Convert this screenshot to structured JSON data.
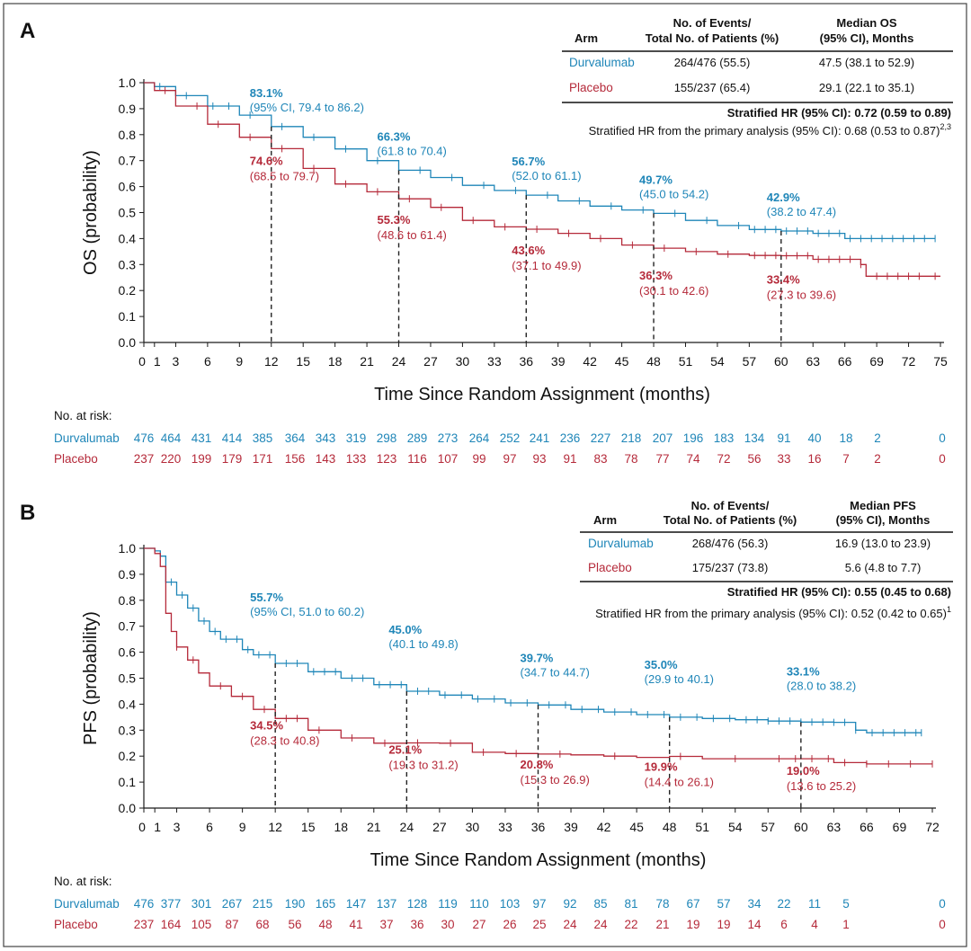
{
  "colors": {
    "durvalumab": "#1f86b8",
    "placebo": "#b52a3a",
    "axis": "#1a1a1a",
    "frame": "#444444"
  },
  "chart_data": [
    {
      "panel": "A",
      "type": "line",
      "ylabel": "OS (probability)",
      "xlabel": "Time Since Random Assignment (months)",
      "xlim": [
        0,
        75
      ],
      "ylim": [
        0,
        1
      ],
      "xticks": [
        "0",
        "1",
        "3",
        "6",
        "9",
        "12",
        "15",
        "18",
        "21",
        "24",
        "27",
        "30",
        "33",
        "36",
        "39",
        "42",
        "45",
        "48",
        "51",
        "54",
        "57",
        "60",
        "63",
        "66",
        "69",
        "72",
        "75"
      ],
      "xtick_values": [
        0,
        1,
        3,
        6,
        9,
        12,
        15,
        18,
        21,
        24,
        27,
        30,
        33,
        36,
        39,
        42,
        45,
        48,
        51,
        54,
        57,
        60,
        63,
        66,
        69,
        72,
        75
      ],
      "yticks": [
        "0.0",
        "0.1",
        "0.2",
        "0.3",
        "0.4",
        "0.5",
        "0.6",
        "0.7",
        "0.8",
        "0.9",
        "1.0"
      ],
      "ytick_values": [
        0,
        0.1,
        0.2,
        0.3,
        0.4,
        0.5,
        0.6,
        0.7,
        0.8,
        0.9,
        1.0
      ],
      "series": [
        {
          "name": "Durvalumab",
          "color_key": "durvalumab",
          "x": [
            0,
            1,
            3,
            6,
            9,
            12,
            15,
            18,
            21,
            24,
            27,
            30,
            33,
            36,
            39,
            42,
            45,
            48,
            51,
            54,
            57,
            60,
            63,
            66,
            69,
            72,
            74.5
          ],
          "y": [
            1.0,
            0.985,
            0.95,
            0.91,
            0.875,
            0.831,
            0.79,
            0.745,
            0.7,
            0.663,
            0.635,
            0.605,
            0.585,
            0.567,
            0.545,
            0.525,
            0.51,
            0.497,
            0.47,
            0.45,
            0.435,
            0.429,
            0.42,
            0.4,
            0.4,
            0.4,
            0.4
          ],
          "censor_x": [
            1.5,
            4,
            6.5,
            8,
            10,
            13,
            16,
            19,
            22,
            26,
            29,
            32,
            35,
            38,
            41,
            44,
            47,
            50,
            53,
            56,
            57.5,
            58.5,
            59.5,
            60.5,
            61.5,
            62.5,
            63.5,
            64.5,
            65.5,
            66.5,
            67.5,
            68.5,
            69.5,
            70.5,
            71.5,
            72.5,
            73.5,
            74.5
          ]
        },
        {
          "name": "Placebo",
          "color_key": "placebo",
          "x": [
            0,
            1,
            3,
            6,
            9,
            12,
            15,
            18,
            21,
            24,
            27,
            30,
            33,
            36,
            39,
            42,
            45,
            48,
            51,
            54,
            57,
            60,
            63,
            66,
            67.5,
            68,
            69,
            72,
            75
          ],
          "y": [
            1.0,
            0.97,
            0.91,
            0.84,
            0.79,
            0.746,
            0.67,
            0.61,
            0.58,
            0.553,
            0.52,
            0.47,
            0.445,
            0.436,
            0.42,
            0.4,
            0.375,
            0.363,
            0.35,
            0.34,
            0.335,
            0.334,
            0.32,
            0.32,
            0.3,
            0.255,
            0.255,
            0.255,
            0.255
          ],
          "censor_x": [
            2,
            5,
            7,
            10,
            13,
            16,
            19,
            22,
            25,
            28,
            31,
            34,
            37,
            40,
            43,
            46,
            49,
            52,
            55,
            57.5,
            58.5,
            59.5,
            60.5,
            61.5,
            62.5,
            63.5,
            64.5,
            65.5,
            66.5,
            67.5,
            69,
            70,
            71,
            72,
            73,
            74.5
          ]
        }
      ],
      "landmarks": [
        {
          "x": 12,
          "dur": 0.831,
          "pla": 0.746,
          "dur_pct": "83.1%",
          "dur_ci": "(95% CI, 79.4 to 86.2)",
          "pla_pct": "74.6%",
          "pla_ci": "(68.5 to 79.7)"
        },
        {
          "x": 24,
          "dur": 0.663,
          "pla": 0.553,
          "dur_pct": "66.3%",
          "dur_ci": "(61.8 to 70.4)",
          "pla_pct": "55.3%",
          "pla_ci": "(48.6 to 61.4)"
        },
        {
          "x": 36,
          "dur": 0.567,
          "pla": 0.436,
          "dur_pct": "56.7%",
          "dur_ci": "(52.0 to 61.1)",
          "pla_pct": "43.6%",
          "pla_ci": "(37.1 to 49.9)"
        },
        {
          "x": 48,
          "dur": 0.497,
          "pla": 0.363,
          "dur_pct": "49.7%",
          "dur_ci": "(45.0 to 54.2)",
          "pla_pct": "36.3%",
          "pla_ci": "(30.1 to 42.6)"
        },
        {
          "x": 60,
          "dur": 0.429,
          "pla": 0.334,
          "dur_pct": "42.9%",
          "dur_ci": "(38.2 to 47.4)",
          "pla_pct": "33.4%",
          "pla_ci": "(27.3 to 39.6)"
        }
      ],
      "table": {
        "header_arm": "Arm",
        "header_events_1": "No. of Events/",
        "header_events_2": "Total No. of Patients (%)",
        "header_median_1": "Median OS",
        "header_median_2": "(95% CI), Months",
        "rows": [
          {
            "arm": "Durvalumab",
            "events": "264/476 (55.5)",
            "median": "47.5 (38.1 to 52.9)"
          },
          {
            "arm": "Placebo",
            "events": "155/237 (65.4)",
            "median": "29.1 (22.1 to 35.1)"
          }
        ],
        "hr_label": "Stratified HR (95% CI):",
        "hr_value": "0.72 (0.59 to 0.89)",
        "primary_text": "Stratified HR from the primary analysis (95% CI): 0.68 (0.53 to 0.87)",
        "primary_sup": "2,3"
      },
      "risk": {
        "title": "No. at risk:",
        "durvalumab": [
          "476",
          "464",
          "431",
          "414",
          "385",
          "364",
          "343",
          "319",
          "298",
          "289",
          "273",
          "264",
          "252",
          "241",
          "236",
          "227",
          "218",
          "207",
          "196",
          "183",
          "134",
          "91",
          "40",
          "18",
          "2",
          "0"
        ],
        "placebo": [
          "237",
          "220",
          "199",
          "179",
          "171",
          "156",
          "143",
          "133",
          "123",
          "116",
          "107",
          "99",
          "97",
          "93",
          "91",
          "83",
          "78",
          "77",
          "74",
          "72",
          "56",
          "33",
          "16",
          "7",
          "2",
          "0"
        ]
      }
    },
    {
      "panel": "B",
      "type": "line",
      "ylabel": "PFS (probability)",
      "xlabel": "Time Since Random Assignment (months)",
      "xlim": [
        0,
        72
      ],
      "ylim": [
        0,
        1
      ],
      "xticks": [
        "0",
        "1",
        "3",
        "6",
        "9",
        "12",
        "15",
        "18",
        "21",
        "24",
        "27",
        "30",
        "33",
        "36",
        "39",
        "42",
        "45",
        "48",
        "51",
        "54",
        "57",
        "60",
        "63",
        "66",
        "69",
        "72"
      ],
      "xtick_values": [
        0,
        1,
        3,
        6,
        9,
        12,
        15,
        18,
        21,
        24,
        27,
        30,
        33,
        36,
        39,
        42,
        45,
        48,
        51,
        54,
        57,
        60,
        63,
        66,
        69,
        72
      ],
      "yticks": [
        "0.0",
        "0.1",
        "0.2",
        "0.3",
        "0.4",
        "0.5",
        "0.6",
        "0.7",
        "0.8",
        "0.9",
        "1.0"
      ],
      "ytick_values": [
        0,
        0.1,
        0.2,
        0.3,
        0.4,
        0.5,
        0.6,
        0.7,
        0.8,
        0.9,
        1.0
      ],
      "series": [
        {
          "name": "Durvalumab",
          "color_key": "durvalumab",
          "x": [
            0,
            1,
            1.5,
            2,
            3,
            4,
            5,
            6,
            7,
            9,
            10,
            12,
            15,
            18,
            21,
            24,
            27,
            30,
            33,
            36,
            39,
            42,
            45,
            48,
            51,
            54,
            57,
            60,
            63,
            65,
            66,
            69,
            71
          ],
          "y": [
            1.0,
            0.99,
            0.97,
            0.87,
            0.82,
            0.77,
            0.72,
            0.68,
            0.65,
            0.61,
            0.59,
            0.557,
            0.525,
            0.5,
            0.475,
            0.45,
            0.435,
            0.42,
            0.405,
            0.397,
            0.38,
            0.37,
            0.36,
            0.35,
            0.345,
            0.34,
            0.335,
            0.331,
            0.33,
            0.3,
            0.29,
            0.29,
            0.29
          ],
          "censor_x": [
            2.5,
            3.5,
            4.5,
            5.5,
            6.5,
            7.5,
            8.5,
            9.5,
            10.5,
            11.5,
            13,
            14,
            15.5,
            16.5,
            17.5,
            19,
            20,
            21.5,
            22.5,
            23.5,
            25,
            26,
            27.5,
            29,
            30.5,
            32,
            33.5,
            35,
            37,
            38.5,
            40,
            41.5,
            43,
            44.5,
            46,
            47.5,
            49,
            50.5,
            52,
            53.5,
            55,
            56,
            57,
            58,
            59,
            60,
            61,
            62,
            63,
            64,
            65,
            66.5,
            67.5,
            68.5,
            69.5,
            70.5,
            71
          ]
        },
        {
          "name": "Placebo",
          "color_key": "placebo",
          "x": [
            0,
            1,
            1.5,
            2,
            2.5,
            3,
            4,
            5,
            6,
            8,
            10,
            12,
            15,
            18,
            21,
            24,
            27,
            30,
            33,
            36,
            39,
            42,
            45,
            48,
            51,
            54,
            57,
            60,
            63,
            66,
            69,
            72
          ],
          "y": [
            1.0,
            0.98,
            0.93,
            0.75,
            0.68,
            0.62,
            0.57,
            0.52,
            0.47,
            0.43,
            0.38,
            0.345,
            0.3,
            0.27,
            0.25,
            0.251,
            0.25,
            0.215,
            0.21,
            0.208,
            0.205,
            0.2,
            0.195,
            0.199,
            0.19,
            0.19,
            0.19,
            0.19,
            0.175,
            0.17,
            0.17,
            0.17
          ],
          "censor_x": [
            3,
            4.5,
            7,
            9,
            11,
            13,
            14,
            16,
            19,
            22,
            25,
            28,
            31,
            34,
            38,
            43,
            49,
            54,
            58,
            59.5,
            61,
            62.5,
            64,
            66,
            68,
            70,
            72
          ]
        }
      ],
      "landmarks": [
        {
          "x": 12,
          "dur": 0.557,
          "pla": 0.345,
          "dur_pct": "55.7%",
          "dur_ci": "(95% CI, 51.0 to 60.2)",
          "pla_pct": "34.5%",
          "pla_ci": "(28.3 to 40.8)"
        },
        {
          "x": 24,
          "dur": 0.45,
          "pla": 0.251,
          "dur_pct": "45.0%",
          "dur_ci": "(40.1 to 49.8)",
          "pla_pct": "25.1%",
          "pla_ci": "(19.3 to 31.2)"
        },
        {
          "x": 36,
          "dur": 0.397,
          "pla": 0.208,
          "dur_pct": "39.7%",
          "dur_ci": "(34.7 to 44.7)",
          "pla_pct": "20.8%",
          "pla_ci": "(15.3 to 26.9)"
        },
        {
          "x": 48,
          "dur": 0.35,
          "pla": 0.199,
          "dur_pct": "35.0%",
          "dur_ci": "(29.9 to 40.1)",
          "pla_pct": "19.9%",
          "pla_ci": "(14.4 to 26.1)"
        },
        {
          "x": 60,
          "dur": 0.331,
          "pla": 0.19,
          "dur_pct": "33.1%",
          "dur_ci": "(28.0 to 38.2)",
          "pla_pct": "19.0%",
          "pla_ci": "(13.6 to 25.2)"
        }
      ],
      "table": {
        "header_arm": "Arm",
        "header_events_1": "No. of Events/",
        "header_events_2": "Total No. of Patients (%)",
        "header_median_1": "Median PFS",
        "header_median_2": "(95% CI), Months",
        "rows": [
          {
            "arm": "Durvalumab",
            "events": "268/476 (56.3)",
            "median": "16.9 (13.0 to 23.9)"
          },
          {
            "arm": "Placebo",
            "events": "175/237 (73.8)",
            "median": "5.6 (4.8 to 7.7)"
          }
        ],
        "hr_label": "Stratified HR (95% CI):",
        "hr_value": "0.55 (0.45 to 0.68)",
        "primary_text": "Stratified HR from the primary analysis (95% CI): 0.52 (0.42 to 0.65)",
        "primary_sup": "1"
      },
      "risk": {
        "title": "No. at risk:",
        "durvalumab": [
          "476",
          "377",
          "301",
          "267",
          "215",
          "190",
          "165",
          "147",
          "137",
          "128",
          "119",
          "110",
          "103",
          "97",
          "92",
          "85",
          "81",
          "78",
          "67",
          "57",
          "34",
          "22",
          "11",
          "5",
          "0"
        ],
        "placebo": [
          "237",
          "164",
          "105",
          "87",
          "68",
          "56",
          "48",
          "41",
          "37",
          "36",
          "30",
          "27",
          "26",
          "25",
          "24",
          "24",
          "22",
          "21",
          "19",
          "19",
          "14",
          "6",
          "4",
          "1",
          "0"
        ]
      }
    }
  ]
}
